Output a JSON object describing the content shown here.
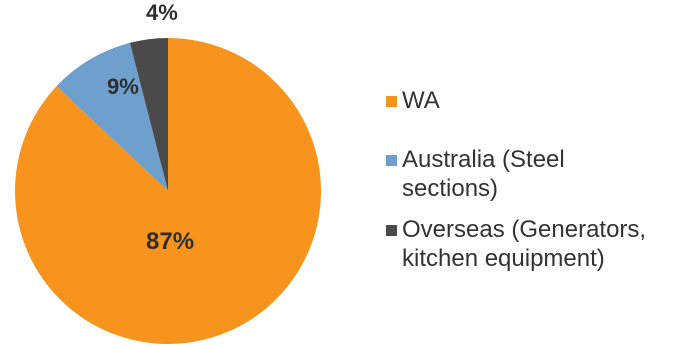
{
  "chart_data": {
    "type": "pie",
    "slices": [
      {
        "label_lines": [
          "WA"
        ],
        "value": 87,
        "display": "87%",
        "color": "#f7941d"
      },
      {
        "label_lines": [
          "Australia (Steel",
          "sections)"
        ],
        "value": 9,
        "display": "9%",
        "color": "#6f9fcc"
      },
      {
        "label_lines": [
          "Overseas (Generators,",
          "kitchen equipment)"
        ],
        "value": 4,
        "display": "4%",
        "color": "#4a4a4a"
      }
    ],
    "start_angle_deg": 0,
    "direction": "clockwise",
    "legend_position": "right"
  }
}
